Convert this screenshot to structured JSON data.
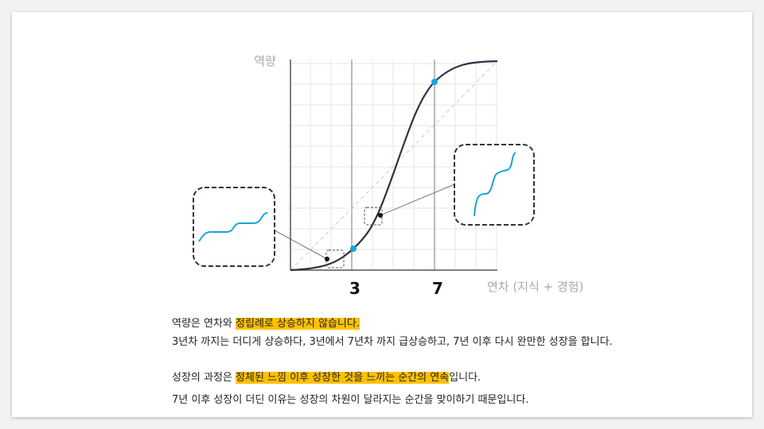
{
  "diagram": {
    "y_axis_label": "역량",
    "x_axis_label": "연차 (지식 + 경험)",
    "x_ticks": [
      "3",
      "7"
    ]
  },
  "text": {
    "lines": [
      {
        "plain": "역량은 연차와 ",
        "highlight": "정립례로 상승하지 않습니다."
      },
      {
        "plain": "3년차 까지는 더디게 상승하다, 3년에서 7년차 까지 급상승하고, 7년 이후 다시 완만한 성장을 합니다."
      },
      {
        "plain": "성장의 과정은 ",
        "highlight": "정체된 느낌 이후 성장한 것을 느끼는 순간의 연속",
        "tail": "입니다."
      },
      {
        "plain": "7년 이후 성장이 더딘 이유는 성장의 차원이 달라지는 순간을 맞이하기 때문입니다."
      }
    ]
  }
}
